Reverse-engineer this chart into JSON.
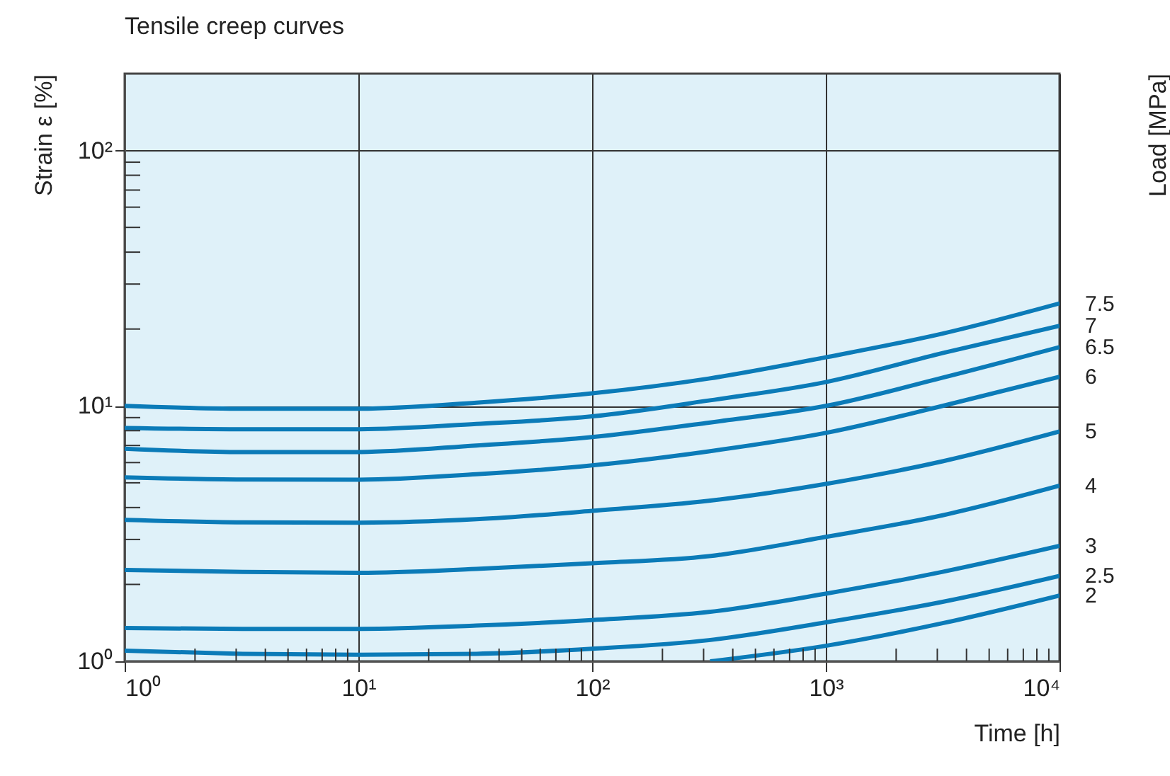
{
  "chart_data": {
    "type": "line",
    "title": "Tensile creep curves",
    "xlabel": "Time [h]",
    "ylabel": "Strain ε [%]",
    "y2label": "Load [MPa]",
    "log": "xy",
    "grid": true,
    "legend": false,
    "marker": "none",
    "line_style": "solid",
    "xlim": [
      1,
      10000
    ],
    "ylim": [
      1,
      200
    ],
    "xticks": [
      {
        "value": 1,
        "label": "10⁰"
      },
      {
        "value": 2,
        "label": null
      },
      {
        "value": 3,
        "label": null
      },
      {
        "value": 4,
        "label": null
      },
      {
        "value": 5,
        "label": null
      },
      {
        "value": 6,
        "label": null
      },
      {
        "value": 7,
        "label": null
      },
      {
        "value": 8,
        "label": null
      },
      {
        "value": 9,
        "label": null
      },
      {
        "value": 10,
        "label": "10¹"
      },
      {
        "value": 20,
        "label": null
      },
      {
        "value": 30,
        "label": null
      },
      {
        "value": 40,
        "label": null
      },
      {
        "value": 50,
        "label": null
      },
      {
        "value": 60,
        "label": null
      },
      {
        "value": 70,
        "label": null
      },
      {
        "value": 80,
        "label": null
      },
      {
        "value": 90,
        "label": null
      },
      {
        "value": 100,
        "label": "10²"
      },
      {
        "value": 200,
        "label": null
      },
      {
        "value": 300,
        "label": null
      },
      {
        "value": 400,
        "label": null
      },
      {
        "value": 500,
        "label": null
      },
      {
        "value": 600,
        "label": null
      },
      {
        "value": 700,
        "label": null
      },
      {
        "value": 800,
        "label": null
      },
      {
        "value": 900,
        "label": null
      },
      {
        "value": 1000,
        "label": "10³"
      },
      {
        "value": 2000,
        "label": null
      },
      {
        "value": 3000,
        "label": null
      },
      {
        "value": 4000,
        "label": null
      },
      {
        "value": 5000,
        "label": null
      },
      {
        "value": 6000,
        "label": null
      },
      {
        "value": 7000,
        "label": null
      },
      {
        "value": 8000,
        "label": null
      },
      {
        "value": 9000,
        "label": null
      },
      {
        "value": 10000,
        "label": "10⁴"
      }
    ],
    "yticks": [
      {
        "value": 1,
        "label": "10⁰"
      },
      {
        "value": 2,
        "label": null
      },
      {
        "value": 3,
        "label": null
      },
      {
        "value": 4,
        "label": null
      },
      {
        "value": 5,
        "label": null
      },
      {
        "value": 6,
        "label": null
      },
      {
        "value": 7,
        "label": null
      },
      {
        "value": 8,
        "label": null
      },
      {
        "value": 9,
        "label": null
      },
      {
        "value": 10,
        "label": "10¹"
      },
      {
        "value": 20,
        "label": null
      },
      {
        "value": 30,
        "label": null
      },
      {
        "value": 40,
        "label": null
      },
      {
        "value": 50,
        "label": null
      },
      {
        "value": 60,
        "label": null
      },
      {
        "value": 70,
        "label": null
      },
      {
        "value": 80,
        "label": null
      },
      {
        "value": 90,
        "label": null
      },
      {
        "value": 100,
        "label": "10²"
      }
    ],
    "x": [
      1,
      3.2,
      10,
      32,
      100,
      316,
      1000,
      3162,
      10000
    ],
    "series": [
      {
        "name": "7.5",
        "color": "#0b7bb8",
        "values": [
          10.0,
          9.75,
          9.75,
          10.3,
          11.2,
          12.8,
          15.5,
          19.2,
          25.2
        ]
      },
      {
        "name": "7",
        "color": "#0b7bb8",
        "values": [
          8.2,
          8.1,
          8.1,
          8.5,
          9.1,
          10.5,
          12.4,
          16.1,
          20.6
        ]
      },
      {
        "name": "6.5",
        "color": "#0b7bb8",
        "values": [
          6.8,
          6.6,
          6.6,
          7.0,
          7.55,
          8.6,
          10.0,
          12.9,
          17.0
        ]
      },
      {
        "name": "6",
        "color": "#0b7bb8",
        "values": [
          5.25,
          5.15,
          5.14,
          5.4,
          5.85,
          6.64,
          7.84,
          10.0,
          13.0
        ]
      },
      {
        "name": "5",
        "color": "#0b7bb8",
        "values": [
          3.58,
          3.5,
          3.49,
          3.6,
          3.88,
          4.25,
          4.95,
          6.07,
          7.94
        ]
      },
      {
        "name": "4",
        "color": "#0b7bb8",
        "values": [
          2.28,
          2.24,
          2.22,
          2.3,
          2.42,
          2.58,
          3.07,
          3.73,
          4.87
        ]
      },
      {
        "name": "3",
        "color": "#0b7bb8",
        "values": [
          1.35,
          1.34,
          1.34,
          1.38,
          1.45,
          1.56,
          1.84,
          2.24,
          2.83
        ]
      },
      {
        "name": "2.5",
        "color": "#0b7bb8",
        "values": [
          1.1,
          1.07,
          1.06,
          1.07,
          1.12,
          1.21,
          1.42,
          1.71,
          2.16
        ]
      },
      {
        "name": "2",
        "color": "#0b7bb8",
        "x": [
          320,
          1000,
          3162,
          10000
        ],
        "values": [
          1.0,
          1.15,
          1.41,
          1.81
        ]
      }
    ]
  }
}
